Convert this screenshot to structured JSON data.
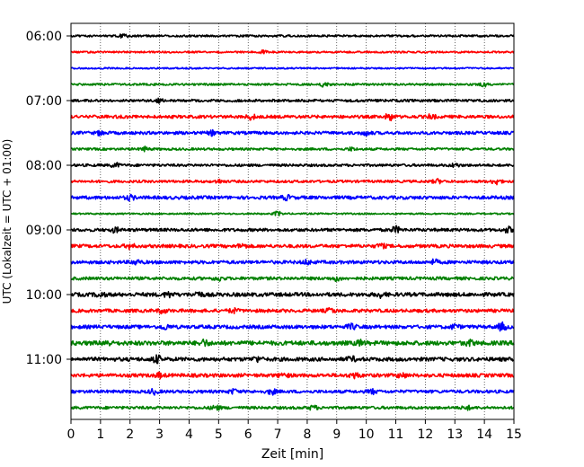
{
  "chart_data": {
    "type": "line",
    "title": "",
    "xlabel": "Zeit  [min]",
    "ylabel": "UTC (Lokalzeit = UTC + 01:00)",
    "xlim": [
      0,
      15
    ],
    "x_ticks": [
      0,
      1,
      2,
      3,
      4,
      5,
      6,
      7,
      8,
      9,
      10,
      11,
      12,
      13,
      14,
      15
    ],
    "vertical_grid": true,
    "grid_style": "dotted",
    "y_tick_labels": [
      "06:00",
      "07:00",
      "08:00",
      "09:00",
      "10:00",
      "11:00"
    ],
    "row_minutes_per_trace": 15,
    "color_cycle": [
      "#000000",
      "#ff0000",
      "#0000ff",
      "#008000"
    ],
    "traces": [
      {
        "start": "06:00",
        "color": "#000000",
        "amp": 0.8,
        "events": [
          [
            1.8,
            1.4
          ]
        ]
      },
      {
        "start": "06:15",
        "color": "#ff0000",
        "amp": 0.7,
        "events": [
          [
            6.5,
            1.0
          ]
        ]
      },
      {
        "start": "06:30",
        "color": "#0000ff",
        "amp": 0.6,
        "events": []
      },
      {
        "start": "06:45",
        "color": "#008000",
        "amp": 0.8,
        "events": [
          [
            8.6,
            2.2
          ],
          [
            14.0,
            1.2
          ]
        ]
      },
      {
        "start": "07:00",
        "color": "#000000",
        "amp": 1.0,
        "events": [
          [
            3.0,
            1.2
          ]
        ]
      },
      {
        "start": "07:15",
        "color": "#ff0000",
        "amp": 1.2,
        "events": [
          [
            6.1,
            1.8
          ],
          [
            10.8,
            2.6
          ],
          [
            12.2,
            1.4
          ]
        ]
      },
      {
        "start": "07:30",
        "color": "#0000ff",
        "amp": 1.2,
        "events": [
          [
            1.0,
            1.4
          ],
          [
            4.8,
            1.5
          ],
          [
            10.0,
            1.6
          ]
        ]
      },
      {
        "start": "07:45",
        "color": "#008000",
        "amp": 0.9,
        "events": [
          [
            2.5,
            1.4
          ],
          [
            9.5,
            1.0
          ]
        ]
      },
      {
        "start": "08:00",
        "color": "#000000",
        "amp": 1.0,
        "events": [
          [
            1.5,
            1.6
          ],
          [
            13.0,
            1.2
          ]
        ]
      },
      {
        "start": "08:15",
        "color": "#ff0000",
        "amp": 1.0,
        "events": [
          [
            5.0,
            1.2
          ],
          [
            12.4,
            1.4
          ],
          [
            14.4,
            2.0
          ]
        ]
      },
      {
        "start": "08:30",
        "color": "#0000ff",
        "amp": 1.3,
        "events": [
          [
            2.0,
            1.6
          ],
          [
            7.3,
            1.5
          ]
        ]
      },
      {
        "start": "08:45",
        "color": "#008000",
        "amp": 0.6,
        "events": [
          [
            7.0,
            1.6
          ]
        ]
      },
      {
        "start": "09:00",
        "color": "#000000",
        "amp": 1.2,
        "events": [
          [
            1.5,
            1.6
          ],
          [
            11.0,
            2.2
          ],
          [
            14.8,
            1.8
          ]
        ]
      },
      {
        "start": "09:15",
        "color": "#ff0000",
        "amp": 1.3,
        "events": [
          [
            2.0,
            1.6
          ],
          [
            5.8,
            1.5
          ],
          [
            10.5,
            1.5
          ]
        ]
      },
      {
        "start": "09:30",
        "color": "#0000ff",
        "amp": 1.3,
        "events": [
          [
            2.2,
            1.6
          ],
          [
            8.0,
            1.4
          ],
          [
            12.3,
            1.5
          ]
        ]
      },
      {
        "start": "09:45",
        "color": "#008000",
        "amp": 1.2,
        "events": [
          [
            5.0,
            1.4
          ],
          [
            9.0,
            1.4
          ]
        ]
      },
      {
        "start": "10:00",
        "color": "#000000",
        "amp": 1.5,
        "events": [
          [
            1.0,
            1.5
          ],
          [
            3.3,
            1.7
          ],
          [
            4.3,
            2.0
          ],
          [
            10.5,
            1.6
          ]
        ]
      },
      {
        "start": "10:15",
        "color": "#ff0000",
        "amp": 1.3,
        "events": [
          [
            3.1,
            1.5
          ],
          [
            5.5,
            1.4
          ],
          [
            8.8,
            1.6
          ]
        ]
      },
      {
        "start": "10:30",
        "color": "#0000ff",
        "amp": 1.4,
        "events": [
          [
            3.2,
            1.6
          ],
          [
            9.5,
            1.7
          ],
          [
            13.0,
            1.5
          ],
          [
            14.6,
            2.6
          ]
        ]
      },
      {
        "start": "10:45",
        "color": "#008000",
        "amp": 1.7,
        "events": [
          [
            1.2,
            1.6
          ],
          [
            4.5,
            2.0
          ],
          [
            9.8,
            1.6
          ],
          [
            13.5,
            1.6
          ]
        ]
      },
      {
        "start": "11:00",
        "color": "#000000",
        "amp": 1.5,
        "events": [
          [
            2.9,
            2.6
          ],
          [
            6.3,
            1.6
          ],
          [
            9.5,
            1.5
          ]
        ]
      },
      {
        "start": "11:15",
        "color": "#ff0000",
        "amp": 1.4,
        "events": [
          [
            3.0,
            1.5
          ],
          [
            7.2,
            1.6
          ],
          [
            9.6,
            1.8
          ],
          [
            11.2,
            1.6
          ]
        ]
      },
      {
        "start": "11:30",
        "color": "#0000ff",
        "amp": 1.2,
        "events": [
          [
            2.8,
            1.7
          ],
          [
            5.5,
            1.5
          ],
          [
            6.8,
            1.8
          ],
          [
            10.2,
            1.5
          ]
        ]
      },
      {
        "start": "11:45",
        "color": "#008000",
        "amp": 1.1,
        "events": [
          [
            4.9,
            1.8
          ],
          [
            8.2,
            1.4
          ],
          [
            13.4,
            1.3
          ]
        ]
      }
    ]
  }
}
